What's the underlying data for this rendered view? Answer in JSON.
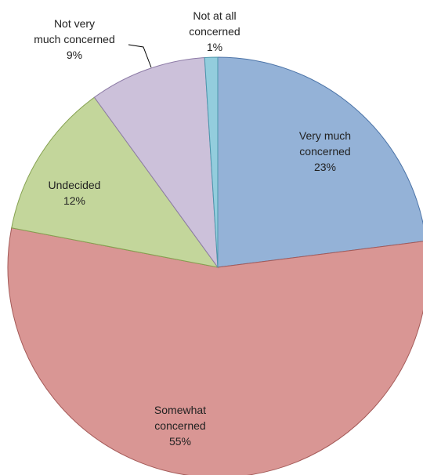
{
  "chart_data": {
    "type": "pie",
    "title": "",
    "start_angle_deg": 0,
    "direction": "clockwise",
    "slices": [
      {
        "label_lines": [
          "Very much",
          "concerned"
        ],
        "value_label": "23%",
        "value": 23,
        "color": "#94B2D7",
        "edge_color": "#4C74A8"
      },
      {
        "label_lines": [
          "Somewhat",
          "concerned"
        ],
        "value_label": "55%",
        "value": 55,
        "color": "#D99694",
        "edge_color": "#A45A58"
      },
      {
        "label_lines": [
          "Undecided"
        ],
        "value_label": "12%",
        "value": 12,
        "color": "#C3D69B",
        "edge_color": "#85A150"
      },
      {
        "label_lines": [
          "Not very",
          "much concerned"
        ],
        "value_label": "9%",
        "value": 9,
        "color": "#CCC1DA",
        "edge_color": "#8D7BA6"
      },
      {
        "label_lines": [
          "Not at all",
          "concerned"
        ],
        "value_label": "1%",
        "value": 1,
        "color": "#93CDDD",
        "edge_color": "#4B96AC"
      }
    ],
    "legend": "none"
  }
}
